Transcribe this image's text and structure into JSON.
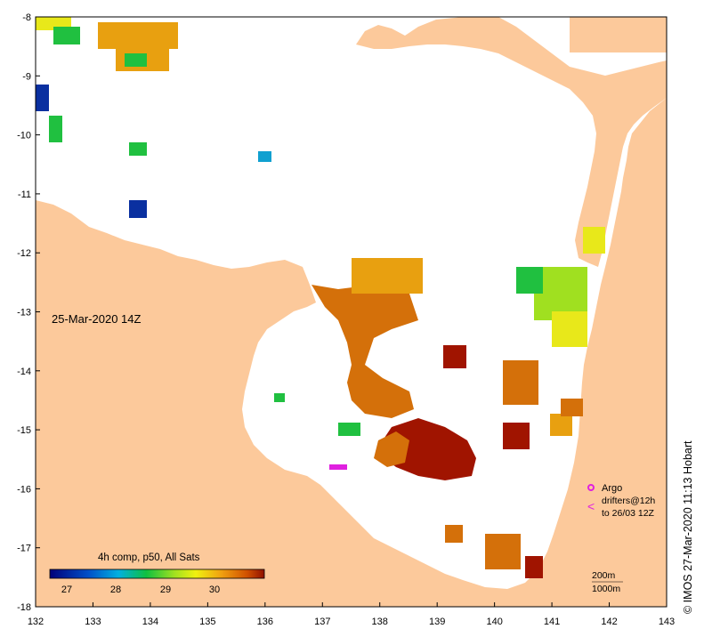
{
  "map": {
    "date_label": "25-Mar-2020 14Z",
    "x_ticks": [
      "132",
      "133",
      "134",
      "135",
      "136",
      "137",
      "138",
      "139",
      "140",
      "141",
      "142",
      "143"
    ],
    "y_ticks": [
      "-8",
      "-9",
      "-10",
      "-11",
      "-12",
      "-13",
      "-14",
      "-15",
      "-16",
      "-17",
      "-18"
    ],
    "colors": {
      "land": "#fcc99b",
      "sea": "#ffffff",
      "warmest": "#a01400",
      "warm": "#d4700a",
      "mid": "#e8a010",
      "yellow": "#e8e81a",
      "green": "#20c040",
      "cyan": "#10a0d0",
      "blue": "#0a30a0",
      "argo": "#e020e0"
    }
  },
  "legend": {
    "title": "4h comp, p50, All Sats",
    "ticks": [
      "27",
      "28",
      "29",
      "30"
    ],
    "argo_label": "Argo",
    "drifters_label": "drifters@12h",
    "drifters_sub": "to 26/03 12Z",
    "depth_200": "200m",
    "depth_1000": "1000m"
  },
  "credit": "© IMOS 27-Mar-2020 11:13 Hobart"
}
